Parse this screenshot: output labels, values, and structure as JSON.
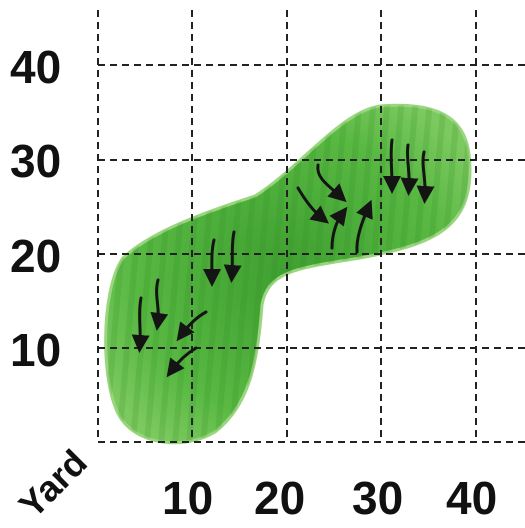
{
  "unit_label": "Yard",
  "x_ticks": [
    "10",
    "20",
    "30",
    "40"
  ],
  "y_ticks": [
    "10",
    "20",
    "30",
    "40"
  ],
  "colors": {
    "green_fill": "#58b842",
    "green_dark": "#2f8a24",
    "green_edge": "#9ad67f",
    "grid": "#222222",
    "arrow": "#141414"
  },
  "icons": [
    "slope-arrow-icon"
  ]
}
